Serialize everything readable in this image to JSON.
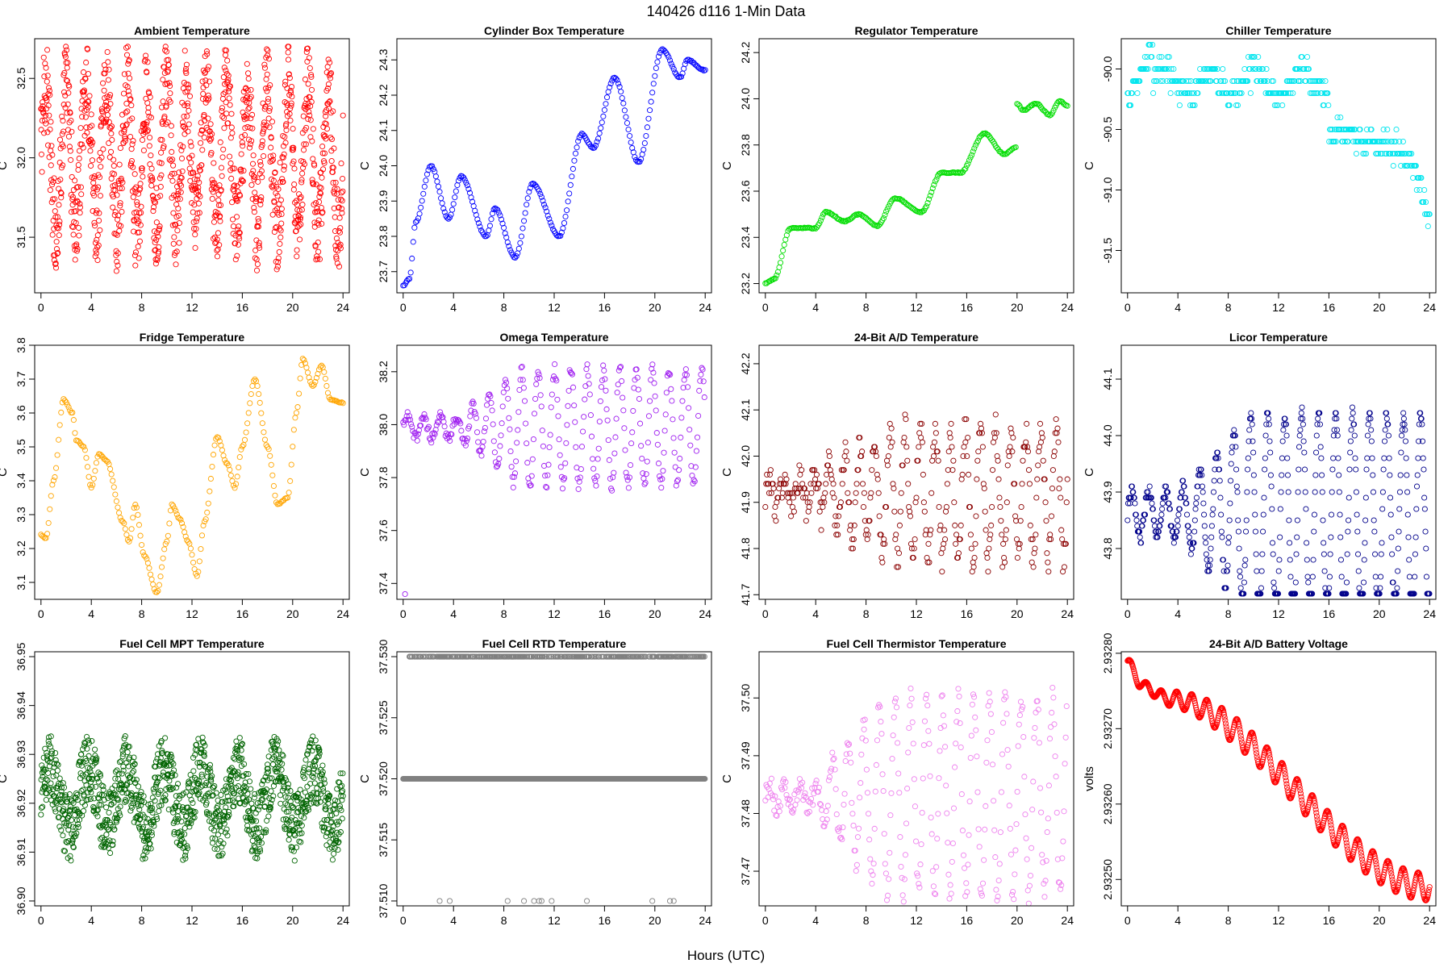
{
  "page": {
    "title": "140426   d116   1-Min Data",
    "xlabel": "Hours (UTC)"
  },
  "chart_data": [
    {
      "id": "ambient",
      "type": "scatter",
      "title": "Ambient Temperature",
      "ylabel": "C",
      "color": "#ff0000",
      "xlim": [
        -0.5,
        24.5
      ],
      "ylim": [
        31.15,
        32.75
      ],
      "yticks": [
        31.5,
        32.0,
        32.5
      ],
      "ytick_labels": [
        "31.5",
        "32.0",
        "32.5"
      ],
      "xticks": [
        0,
        4,
        8,
        12,
        16,
        20,
        24
      ],
      "gen": {
        "kind": "noise",
        "min": 31.2,
        "max": 32.7,
        "mid": 32.0,
        "amp": 0.45,
        "per": 1.6,
        "noise": 0.28
      }
    },
    {
      "id": "cylinder",
      "type": "scatter",
      "title": "Cylinder Box Temperature",
      "ylabel": "C",
      "color": "#0000ff",
      "xlim": [
        -0.5,
        24.5
      ],
      "ylim": [
        23.64,
        24.36
      ],
      "yticks": [
        23.7,
        23.8,
        23.9,
        24.0,
        24.1,
        24.2,
        24.3
      ],
      "ytick_labels": [
        "23.7",
        "23.8",
        "23.9",
        "24.0",
        "24.1",
        "24.2",
        "24.3"
      ],
      "xticks": [
        0,
        4,
        8,
        12,
        16,
        20,
        24
      ],
      "gen": {
        "kind": "keys",
        "step": 0.1,
        "keys": [
          [
            0,
            23.66
          ],
          [
            0.5,
            23.68
          ],
          [
            1,
            23.84
          ],
          [
            2.2,
            24.0
          ],
          [
            3.6,
            23.85
          ],
          [
            4.6,
            23.97
          ],
          [
            6.6,
            23.8
          ],
          [
            7.3,
            23.88
          ],
          [
            8.9,
            23.74
          ],
          [
            10.3,
            23.95
          ],
          [
            12.4,
            23.8
          ],
          [
            14.2,
            24.09
          ],
          [
            15.1,
            24.05
          ],
          [
            16.8,
            24.25
          ],
          [
            18.7,
            24.01
          ],
          [
            20.6,
            24.33
          ],
          [
            22.0,
            24.25
          ],
          [
            22.6,
            24.3
          ],
          [
            24,
            24.27
          ]
        ]
      }
    },
    {
      "id": "regulator",
      "type": "scatter",
      "title": "Regulator Temperature",
      "ylabel": "C",
      "color": "#00dd00",
      "xlim": [
        -0.5,
        24.5
      ],
      "ylim": [
        23.16,
        24.26
      ],
      "yticks": [
        23.2,
        23.4,
        23.6,
        23.8,
        24.0,
        24.2
      ],
      "ytick_labels": [
        "23.2",
        "23.4",
        "23.6",
        "23.8",
        "24.0",
        "24.2"
      ],
      "xticks": [
        0,
        4,
        8,
        12,
        16,
        20,
        24
      ],
      "gen": {
        "kind": "keys",
        "step": 0.1,
        "keys": [
          [
            0,
            23.2
          ],
          [
            0.7,
            23.22
          ],
          [
            2,
            23.44
          ],
          [
            4,
            23.44
          ],
          [
            4.8,
            23.51
          ],
          [
            6.3,
            23.47
          ],
          [
            7.4,
            23.5
          ],
          [
            8.9,
            23.45
          ],
          [
            10.3,
            23.57
          ],
          [
            12.4,
            23.51
          ],
          [
            14,
            23.68
          ],
          [
            15.5,
            23.68
          ],
          [
            17.4,
            23.85
          ],
          [
            19,
            23.76
          ],
          [
            19.9,
            23.79
          ],
          [
            20,
            23.98
          ],
          [
            20.5,
            23.95
          ],
          [
            21.5,
            23.98
          ],
          [
            22.6,
            23.93
          ],
          [
            23.4,
            23.99
          ],
          [
            24,
            23.97
          ]
        ]
      }
    },
    {
      "id": "chiller",
      "type": "scatter",
      "title": "Chiller Temperature",
      "ylabel": "C",
      "color": "#00e5ee",
      "xlim": [
        -0.5,
        24.5
      ],
      "ylim": [
        -91.85,
        -89.75
      ],
      "yticks": [
        -90.0,
        -90.5,
        -91.0,
        -91.5
      ],
      "ytick_labels": [
        "-90.0",
        "-90.5",
        "-91.0",
        "-91.5"
      ],
      "xticks": [
        0,
        4,
        8,
        12,
        16,
        20,
        24
      ],
      "gen": {
        "kind": "chiller"
      }
    },
    {
      "id": "fridge",
      "type": "scatter",
      "title": "Fridge Temperature",
      "ylabel": "C",
      "color": "#ffa500",
      "xlim": [
        -0.5,
        24.5
      ],
      "ylim": [
        3.05,
        3.8
      ],
      "yticks": [
        3.1,
        3.2,
        3.3,
        3.4,
        3.5,
        3.6,
        3.7,
        3.8
      ],
      "ytick_labels": [
        "3.1",
        "3.2",
        "3.3",
        "3.4",
        "3.5",
        "3.6",
        "3.7",
        "3.8"
      ],
      "xticks": [
        0,
        4,
        8,
        12,
        16,
        20,
        24
      ],
      "gen": {
        "kind": "keys",
        "step": 0.1,
        "keys": [
          [
            0,
            3.24
          ],
          [
            0.4,
            3.23
          ],
          [
            1,
            3.4
          ],
          [
            1.8,
            3.64
          ],
          [
            2.5,
            3.6
          ],
          [
            2.8,
            3.52
          ],
          [
            3.4,
            3.5
          ],
          [
            4,
            3.38
          ],
          [
            4.6,
            3.48
          ],
          [
            5.2,
            3.46
          ],
          [
            6.5,
            3.28
          ],
          [
            7,
            3.22
          ],
          [
            7.5,
            3.33
          ],
          [
            8.2,
            3.18
          ],
          [
            9.2,
            3.07
          ],
          [
            10,
            3.22
          ],
          [
            10.4,
            3.33
          ],
          [
            11,
            3.29
          ],
          [
            11.7,
            3.22
          ],
          [
            12.4,
            3.12
          ],
          [
            13,
            3.28
          ],
          [
            14,
            3.53
          ],
          [
            14.8,
            3.45
          ],
          [
            15.4,
            3.38
          ],
          [
            16,
            3.5
          ],
          [
            17,
            3.7
          ],
          [
            18,
            3.5
          ],
          [
            18.8,
            3.33
          ],
          [
            19.6,
            3.35
          ],
          [
            20.3,
            3.6
          ],
          [
            20.8,
            3.76
          ],
          [
            21.6,
            3.68
          ],
          [
            22.3,
            3.74
          ],
          [
            23,
            3.64
          ],
          [
            24,
            3.63
          ]
        ]
      }
    },
    {
      "id": "omega",
      "type": "scatter",
      "title": "Omega Temperature",
      "ylabel": "C",
      "color": "#a020f0",
      "xlim": [
        -0.5,
        24.5
      ],
      "ylim": [
        37.34,
        38.3
      ],
      "yticks": [
        37.4,
        37.6,
        37.8,
        38.0,
        38.2
      ],
      "ytick_labels": [
        "37.4",
        "37.6",
        "37.8",
        "38.0",
        "38.2"
      ],
      "xticks": [
        0,
        4,
        8,
        12,
        16,
        20,
        24
      ],
      "gen": {
        "kind": "osc",
        "step": 0.07,
        "base": 37.99,
        "ampStart": 0.04,
        "ampEnd": 0.22,
        "rampStart": 4.5,
        "rampEnd": 9,
        "per": 1.3,
        "noise": 0.02,
        "outlier": [
          0.15,
          37.36
        ]
      }
    },
    {
      "id": "ad",
      "type": "scatter",
      "title": "24-Bit A/D Temperature",
      "ylabel": "C",
      "color": "#8b0000",
      "xlim": [
        -0.5,
        24.5
      ],
      "ylim": [
        41.69,
        42.24
      ],
      "yticks": [
        41.7,
        41.8,
        41.9,
        42.0,
        42.1,
        42.2
      ],
      "ytick_labels": [
        "41.7",
        "41.8",
        "41.9",
        "42.0",
        "42.1",
        "42.2"
      ],
      "xticks": [
        0,
        4,
        8,
        12,
        16,
        20,
        24
      ],
      "gen": {
        "kind": "quant",
        "step": 0.06,
        "base": 41.92,
        "ampStart": 0.03,
        "ampEnd": 0.14,
        "rampStart": 3,
        "rampEnd": 10,
        "per": 1.2,
        "noise": 0.035,
        "q": 0.01,
        "min": 41.71,
        "max": 42.23
      }
    },
    {
      "id": "licor",
      "type": "scatter",
      "title": "Licor Temperature",
      "ylabel": "C",
      "color": "#00008b",
      "xlim": [
        -0.5,
        24.5
      ],
      "ylim": [
        43.71,
        44.16
      ],
      "yticks": [
        43.8,
        43.9,
        44.0,
        44.1
      ],
      "ytick_labels": [
        "43.8",
        "43.9",
        "44.0",
        "44.1"
      ],
      "xticks": [
        0,
        4,
        8,
        12,
        16,
        20,
        24
      ],
      "gen": {
        "kind": "quant",
        "step": 0.045,
        "base": 43.86,
        "ampStart": 0.04,
        "ampEnd": 0.18,
        "rampStart": 4,
        "rampEnd": 10,
        "per": 1.35,
        "noise": 0.01,
        "q": 0.01,
        "min": 43.72,
        "max": 44.15
      }
    },
    {
      "id": "fcmpt",
      "type": "scatter",
      "title": "Fuel Cell MPT Temperature",
      "ylabel": "C",
      "color": "#006400",
      "xlim": [
        -0.5,
        24.5
      ],
      "ylim": [
        36.899,
        36.951
      ],
      "yticks": [
        36.9,
        36.91,
        36.92,
        36.93,
        36.94,
        36.95
      ],
      "ytick_labels": [
        "36.90",
        "36.91",
        "36.92",
        "36.93",
        "36.94",
        "36.95"
      ],
      "xticks": [
        0,
        4,
        8,
        12,
        16,
        20,
        24
      ],
      "gen": {
        "kind": "noise",
        "min": 36.9,
        "max": 36.948,
        "mid": 36.921,
        "amp": 0.006,
        "per": 3.0,
        "noise": 0.007
      }
    },
    {
      "id": "fcrtd",
      "type": "scatter",
      "title": "Fuel Cell RTD Temperature",
      "ylabel": "C",
      "color": "#808080",
      "xlim": [
        -0.5,
        24.5
      ],
      "ylim": [
        37.5096,
        37.5304
      ],
      "yticks": [
        37.51,
        37.515,
        37.52,
        37.525,
        37.53
      ],
      "ytick_labels": [
        "37.510",
        "37.515",
        "37.520",
        "37.525",
        "37.530"
      ],
      "xticks": [
        0,
        4,
        8,
        12,
        16,
        20,
        24
      ],
      "gen": {
        "kind": "rtd"
      }
    },
    {
      "id": "fcth",
      "type": "scatter",
      "title": "Fuel Cell Thermistor Temperature",
      "ylabel": "C",
      "color": "#ee82ee",
      "xlim": [
        -0.5,
        24.5
      ],
      "ylim": [
        37.464,
        37.508
      ],
      "yticks": [
        37.47,
        37.48,
        37.49,
        37.5
      ],
      "ytick_labels": [
        "37.47",
        "37.48",
        "37.49",
        "37.50"
      ],
      "xticks": [
        0,
        4,
        8,
        12,
        16,
        20,
        24
      ],
      "gen": {
        "kind": "osc",
        "step": 0.07,
        "base": 37.483,
        "ampStart": 0.002,
        "ampEnd": 0.017,
        "rampStart": 4,
        "rampEnd": 9,
        "per": 1.25,
        "noise": 0.002
      }
    },
    {
      "id": "battery",
      "type": "scatter",
      "title": "24-Bit A/D Battery Voltage",
      "ylabel": "volts",
      "color": "#ff0000",
      "xlim": [
        -0.5,
        24.5
      ],
      "ylim": [
        2.932465,
        2.932802
      ],
      "yticks": [
        2.9325,
        2.9326,
        2.9327,
        2.9328
      ],
      "ytick_labels": [
        "2.93250",
        "2.93260",
        "2.93270",
        "2.93280"
      ],
      "xticks": [
        0,
        4,
        8,
        12,
        16,
        20,
        24
      ],
      "gen": {
        "kind": "battery"
      }
    }
  ]
}
